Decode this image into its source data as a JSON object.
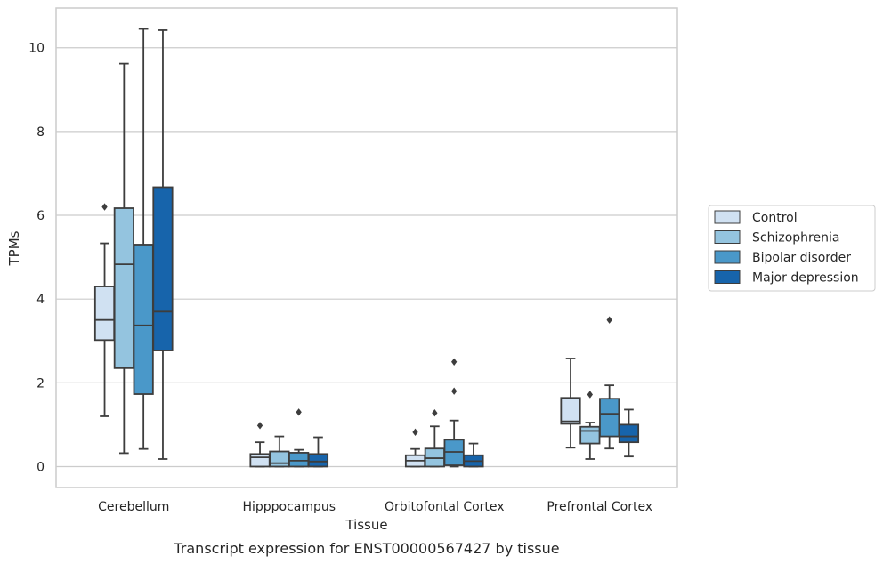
{
  "chart_data": {
    "type": "box",
    "xlabel": "Tissue",
    "ylabel": "TPMs",
    "caption": "Transcript expression for ENST00000567427 by tissue",
    "ylim": [
      -0.5,
      10.95
    ],
    "yticks": [
      0,
      2,
      4,
      6,
      8,
      10
    ],
    "grid": "horizontal",
    "legend_position": "right",
    "categories": [
      "Cerebellum",
      "Hipppocampus",
      "Orbitofontal Cortex",
      "Prefrontal Cortex"
    ],
    "series": [
      {
        "name": "Control",
        "color": "#d0e1f2",
        "boxes": [
          {
            "whislo": 1.2,
            "q1": 3.02,
            "med": 3.5,
            "q3": 4.3,
            "whishi": 5.33,
            "fliers": [
              6.2
            ]
          },
          {
            "whislo": 0.0,
            "q1": 0.0,
            "med": 0.22,
            "q3": 0.3,
            "whishi": 0.58,
            "fliers": [
              0.98
            ]
          },
          {
            "whislo": 0.0,
            "q1": 0.0,
            "med": 0.14,
            "q3": 0.27,
            "whishi": 0.42,
            "fliers": [
              0.82
            ]
          },
          {
            "whislo": 0.45,
            "q1": 1.02,
            "med": 1.08,
            "q3": 1.64,
            "whishi": 2.58,
            "fliers": []
          }
        ]
      },
      {
        "name": "Schizophrenia",
        "color": "#94c4df",
        "boxes": [
          {
            "whislo": 0.32,
            "q1": 2.35,
            "med": 4.83,
            "q3": 6.17,
            "whishi": 9.62,
            "fliers": []
          },
          {
            "whislo": 0.0,
            "q1": 0.0,
            "med": 0.08,
            "q3": 0.36,
            "whishi": 0.72,
            "fliers": []
          },
          {
            "whislo": 0.0,
            "q1": 0.0,
            "med": 0.2,
            "q3": 0.43,
            "whishi": 0.96,
            "fliers": [
              1.28
            ]
          },
          {
            "whislo": 0.18,
            "q1": 0.55,
            "med": 0.85,
            "q3": 0.95,
            "whishi": 1.05,
            "fliers": [
              1.72
            ]
          }
        ]
      },
      {
        "name": "Bipolar disorder",
        "color": "#4a98c9",
        "boxes": [
          {
            "whislo": 0.42,
            "q1": 1.73,
            "med": 3.37,
            "q3": 5.3,
            "whishi": 10.45,
            "fliers": []
          },
          {
            "whislo": 0.0,
            "q1": 0.0,
            "med": 0.14,
            "q3": 0.33,
            "whishi": 0.4,
            "fliers": [
              1.3
            ]
          },
          {
            "whislo": 0.0,
            "q1": 0.03,
            "med": 0.35,
            "q3": 0.64,
            "whishi": 1.1,
            "fliers": [
              1.8,
              2.5
            ]
          },
          {
            "whislo": 0.43,
            "q1": 0.72,
            "med": 1.26,
            "q3": 1.62,
            "whishi": 1.94,
            "fliers": [
              3.5
            ]
          }
        ]
      },
      {
        "name": "Major depression",
        "color": "#1764ab",
        "boxes": [
          {
            "whislo": 0.18,
            "q1": 2.77,
            "med": 3.7,
            "q3": 6.67,
            "whishi": 10.42,
            "fliers": []
          },
          {
            "whislo": 0.0,
            "q1": 0.0,
            "med": 0.12,
            "q3": 0.3,
            "whishi": 0.7,
            "fliers": []
          },
          {
            "whislo": 0.0,
            "q1": 0.0,
            "med": 0.13,
            "q3": 0.27,
            "whishi": 0.55,
            "fliers": []
          },
          {
            "whislo": 0.24,
            "q1": 0.58,
            "med": 0.72,
            "q3": 1.0,
            "whishi": 1.36,
            "fliers": []
          }
        ]
      }
    ]
  }
}
